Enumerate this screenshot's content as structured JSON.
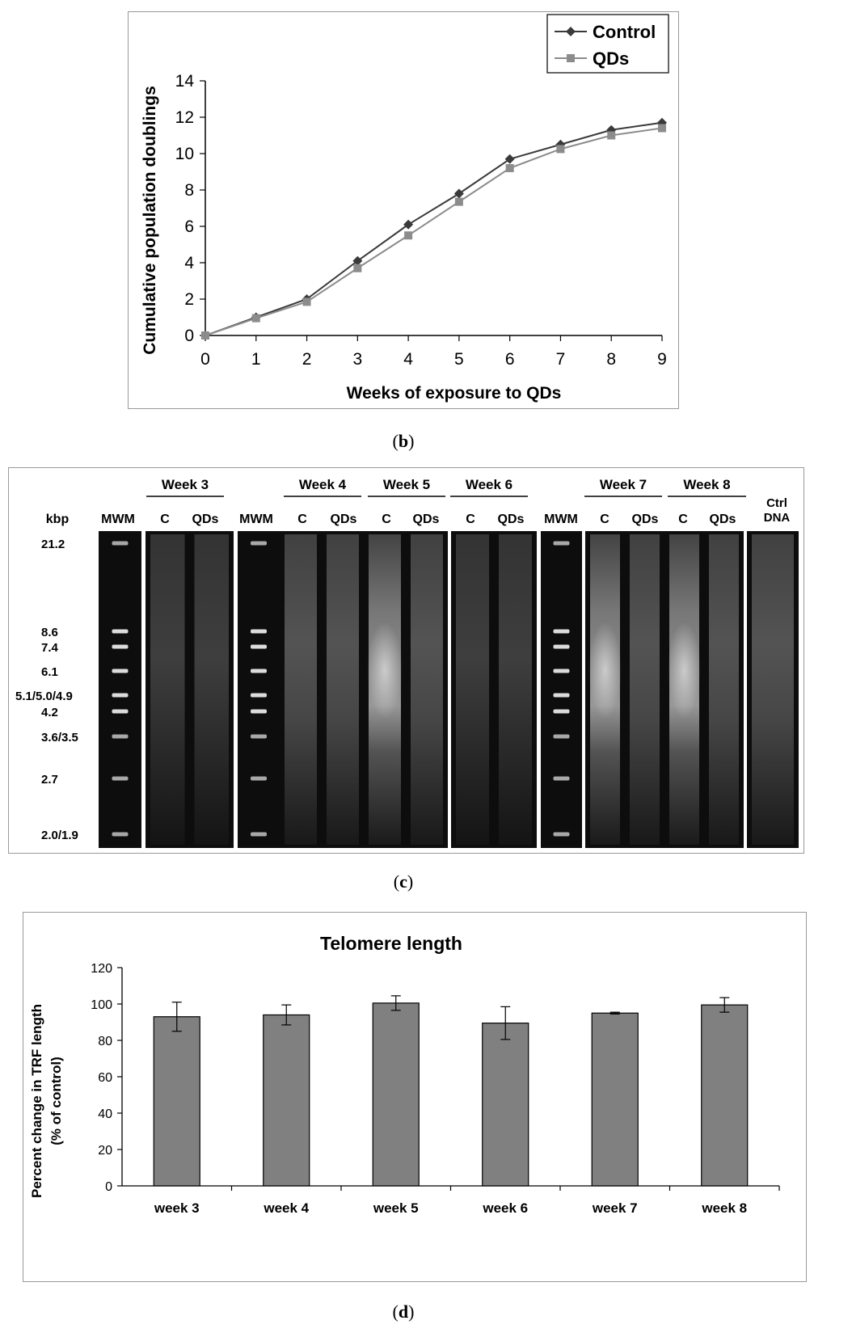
{
  "panels": {
    "b": {
      "caption": "b",
      "chart_data": {
        "type": "line",
        "x": [
          0,
          1,
          2,
          3,
          4,
          5,
          6,
          7,
          8,
          9
        ],
        "series": [
          {
            "name": "Control",
            "values": [
              0,
              1.0,
              2.0,
              4.1,
              6.1,
              7.8,
              9.7,
              10.5,
              11.3,
              11.7
            ],
            "color": "#3a3a3a",
            "marker": "diamond"
          },
          {
            "name": "QDs",
            "values": [
              0,
              0.95,
              1.85,
              3.7,
              5.5,
              7.35,
              9.2,
              10.25,
              11.0,
              11.4
            ],
            "color": "#8c8c8c",
            "marker": "square"
          }
        ],
        "xlabel": "Weeks of exposure to QDs",
        "ylabel": "Cumulative population doublings",
        "xlim": [
          0,
          9
        ],
        "ylim": [
          0,
          14
        ],
        "yticks": [
          "0",
          "2",
          "4",
          "6",
          "8",
          "10",
          "12",
          "14"
        ],
        "xticks": [
          "0",
          "1",
          "2",
          "3",
          "4",
          "5",
          "6",
          "7",
          "8",
          "9"
        ],
        "grid": false,
        "legend": "top-right"
      }
    },
    "c": {
      "caption": "c",
      "unit_label": "kbp",
      "ladder_sizes": [
        "21.2",
        "8.6",
        "7.4",
        "6.1",
        "5.1/5.0/4.9",
        "4.2",
        "3.6/3.5",
        "2.7",
        "2.0/1.9"
      ],
      "groups": [
        {
          "name": "Week 3"
        },
        {
          "name": "Week 4"
        },
        {
          "name": "Week 5"
        },
        {
          "name": "Week 6"
        },
        {
          "name": "Week 7"
        },
        {
          "name": "Week 8"
        }
      ],
      "lane_labels": {
        "mwm": "MWM",
        "control": "C",
        "qds": "QDs",
        "ctrl_dna_line1": "Ctrl",
        "ctrl_dna_line2": "DNA"
      }
    },
    "d": {
      "caption": "d",
      "chart_data": {
        "type": "bar",
        "title": "Telomere length",
        "categories": [
          "week 3",
          "week 4",
          "week 5",
          "week 6",
          "week 7",
          "week 8"
        ],
        "values": [
          93,
          94,
          100.5,
          89.5,
          95,
          99.5
        ],
        "errors": [
          8,
          5.5,
          4,
          9,
          0.5,
          4
        ],
        "ylabel_line1": "Percent change in TRF length",
        "ylabel_line2": "(% of control)",
        "ylim": [
          0,
          120
        ],
        "yticks": [
          "0",
          "20",
          "40",
          "60",
          "80",
          "100",
          "120"
        ],
        "bar_color": "#808080",
        "grid": false
      }
    }
  }
}
